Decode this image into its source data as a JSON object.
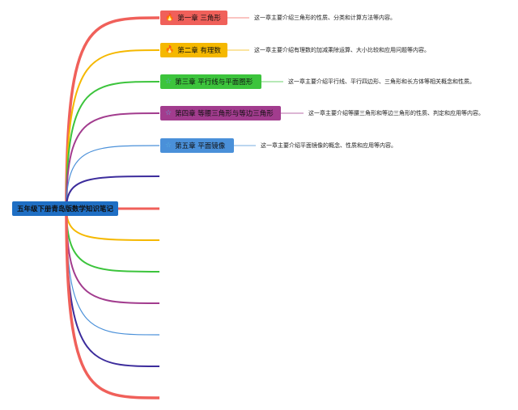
{
  "root": {
    "label": "五年级下册青岛版数学知识笔记",
    "color": "#1f6fc4"
  },
  "chapters": [
    {
      "label": "第一章 三角形",
      "icon": "flame-icon",
      "glyph": "🔥",
      "color": "#f0605a",
      "desc": "这一章主要介绍三角形的性质、分类和计算方法等内容。"
    },
    {
      "label": "第二章 有理数",
      "icon": "flame-icon",
      "glyph": "🔥",
      "color": "#f5b800",
      "desc": "这一章主要介绍有理数的加减乘除运算、大小比较和应用问题等内容。"
    },
    {
      "label": "第三章 平行线与平面图形",
      "icon": "star-icon",
      "glyph": "☆",
      "color": "#3cc43c",
      "desc": "这一章主要介绍平行线、平行四边形、三角形和长方体等相关概念和性质。"
    },
    {
      "label": "第四章 等腰三角形与等边三角形",
      "icon": "star-icon",
      "glyph": "☆",
      "color": "#a23c8e",
      "desc": "这一章主要介绍等腰三角形和等边三角形的性质、判定和应用等内容。"
    },
    {
      "label": "第五章 平面镜像",
      "icon": "star-icon",
      "glyph": "☆",
      "color": "#4a90d9",
      "desc": "这一章主要介绍平面镜像的概念、性质和应用等内容。"
    }
  ],
  "empty_branch_colors": [
    "#3c2c9c",
    "#f0605a",
    "#f5b800",
    "#3cc43c",
    "#a23c8e",
    "#4a90d9",
    "#3c2c9c",
    "#f0605a"
  ]
}
